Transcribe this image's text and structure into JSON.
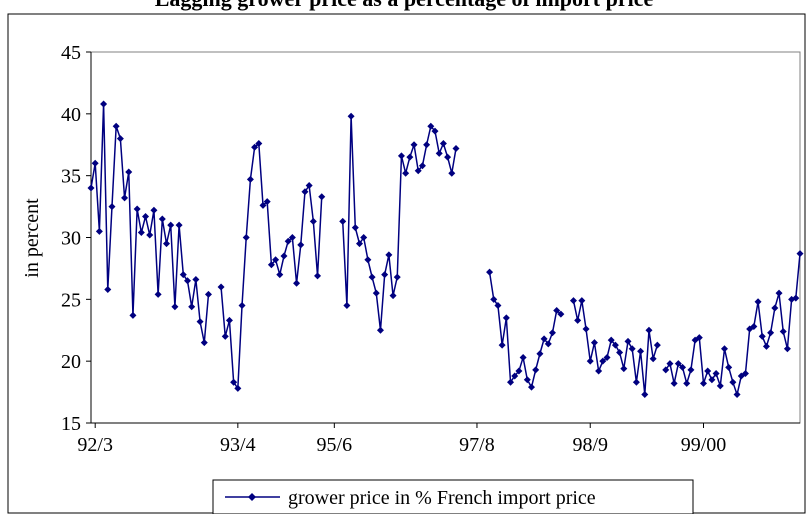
{
  "chart_data": {
    "type": "line",
    "title": "Lagging grower price as a percentage of import price",
    "ylabel": "in percent",
    "ylim": [
      15,
      45
    ],
    "yticks": [
      15,
      20,
      25,
      30,
      35,
      40,
      45
    ],
    "grid": false,
    "categories": [
      null,
      "92/3",
      null,
      null,
      null,
      null,
      null,
      null,
      null,
      null,
      null,
      null,
      null,
      null,
      null,
      null,
      null,
      null,
      null,
      null,
      null,
      null,
      null,
      null,
      null,
      null,
      null,
      null,
      null,
      null,
      null,
      null,
      null,
      null,
      null,
      "93/4",
      null,
      null,
      null,
      null,
      null,
      null,
      null,
      null,
      null,
      null,
      null,
      null,
      null,
      null,
      null,
      null,
      null,
      null,
      null,
      null,
      null,
      null,
      "95/6",
      null,
      null,
      null,
      null,
      null,
      null,
      null,
      null,
      null,
      null,
      null,
      null,
      null,
      null,
      null,
      null,
      null,
      null,
      null,
      null,
      null,
      null,
      null,
      null,
      null,
      null,
      null,
      null,
      null,
      null,
      null,
      null,
      null,
      "97/8",
      null,
      null,
      null,
      null,
      null,
      null,
      null,
      null,
      null,
      null,
      null,
      null,
      null,
      null,
      null,
      null,
      null,
      null,
      null,
      null,
      null,
      null,
      null,
      null,
      null,
      null,
      "98/9",
      null,
      null,
      null,
      null,
      null,
      null,
      null,
      null,
      null,
      null,
      null,
      null,
      null,
      null,
      null,
      null,
      null,
      null,
      null,
      null,
      null,
      null,
      null,
      null,
      null,
      null,
      "99/00",
      null,
      null,
      null,
      null,
      null,
      null,
      null,
      null,
      null,
      null,
      null,
      null,
      null,
      null,
      null,
      null,
      null,
      null,
      null,
      null,
      null,
      null,
      null
    ],
    "series": [
      {
        "name": "grower price in % French import price",
        "color": "#000080",
        "values": [
          34,
          36,
          30.5,
          40.8,
          25.8,
          32.5,
          39,
          38,
          33.2,
          35.3,
          23.7,
          32.3,
          30.4,
          31.7,
          30.2,
          32.2,
          25.4,
          31.5,
          29.5,
          31,
          24.4,
          31,
          27,
          26.5,
          24.4,
          26.6,
          23.2,
          21.5,
          25.4,
          null,
          null,
          26,
          22,
          23.3,
          18.3,
          17.8,
          24.5,
          30,
          34.7,
          37.3,
          37.6,
          32.6,
          32.9,
          27.8,
          28.2,
          27,
          28.5,
          29.7,
          30,
          26.3,
          29.4,
          33.7,
          34.2,
          31.3,
          26.9,
          33.3,
          null,
          null,
          null,
          null,
          31.3,
          24.5,
          39.8,
          30.8,
          29.5,
          30,
          28.2,
          26.8,
          25.5,
          22.5,
          27,
          28.6,
          25.3,
          26.8,
          36.6,
          35.2,
          36.5,
          37.5,
          35.4,
          35.8,
          37.5,
          39,
          38.6,
          36.8,
          37.6,
          36.5,
          35.2,
          37.2,
          null,
          null,
          null,
          null,
          null,
          null,
          null,
          27.2,
          25,
          24.5,
          21.3,
          23.5,
          18.3,
          18.8,
          19.2,
          20.3,
          18.5,
          17.9,
          19.3,
          20.6,
          21.8,
          21.4,
          22.3,
          24.1,
          23.8,
          null,
          null,
          24.9,
          23.3,
          24.9,
          22.6,
          20,
          21.5,
          19.2,
          20,
          20.3,
          21.7,
          21.3,
          20.7,
          19.4,
          21.6,
          21,
          18.3,
          20.8,
          17.3,
          22.5,
          20.2,
          21.3,
          null,
          19.3,
          19.8,
          18.2,
          19.8,
          19.5,
          18.2,
          19.3,
          21.7,
          21.9,
          18.2,
          19.2,
          18.5,
          19,
          18,
          21,
          19.5,
          18.3,
          17.3,
          18.8,
          19,
          22.6,
          22.8,
          24.8,
          22,
          21.2,
          22.3,
          24.3,
          25.5,
          22.4,
          21,
          25,
          25.1,
          28.7
        ]
      }
    ],
    "legend": "bottom"
  }
}
